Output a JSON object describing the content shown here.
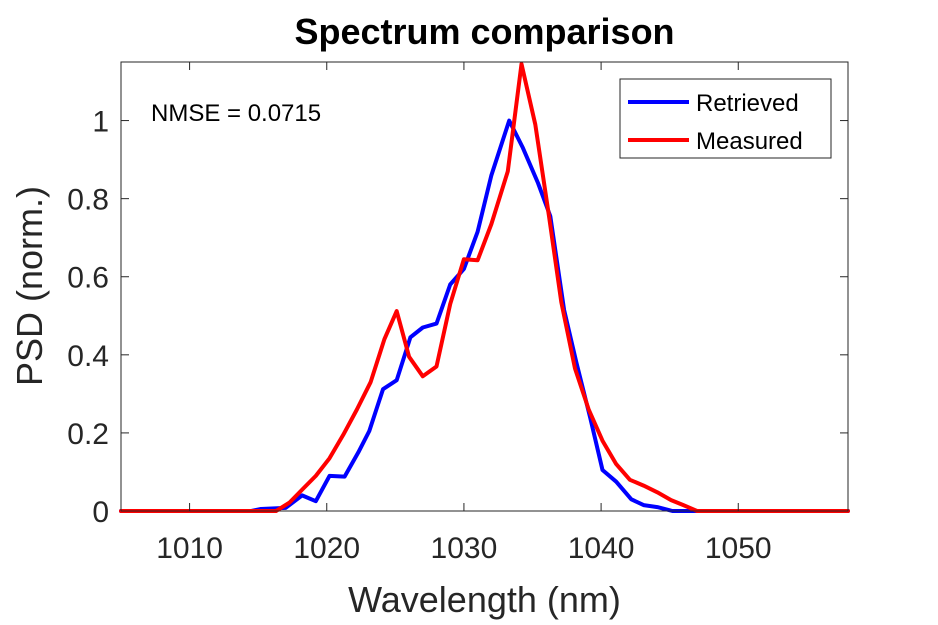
{
  "chart_data": {
    "type": "line",
    "title": "Spectrum comparison",
    "xlabel": "Wavelength (nm)",
    "ylabel": "PSD (norm.)",
    "xlim": [
      1005,
      1058
    ],
    "ylim": [
      0,
      1.15
    ],
    "xticks": [
      1010,
      1020,
      1030,
      1040,
      1050
    ],
    "xtick_labels": [
      "1010",
      "1020",
      "1030",
      "1040",
      "1050"
    ],
    "yticks": [
      0,
      0.2,
      0.4,
      0.6,
      0.8,
      1
    ],
    "ytick_labels": [
      "0",
      "0.2",
      "0.4",
      "0.6",
      "0.8",
      "1"
    ],
    "grid": false,
    "legend_position": "top-right",
    "annotation": "NMSE = 0.0715",
    "series": [
      {
        "name": "Retrieved",
        "color": "#0000FF",
        "x": [
          1005,
          1014.5,
          1015.2,
          1017,
          1018.2,
          1019.2,
          1020.2,
          1021.3,
          1022.3,
          1023.1,
          1024.1,
          1025.1,
          1026.1,
          1027,
          1028,
          1029,
          1030,
          1031,
          1032,
          1033.3,
          1034.3,
          1035.4,
          1036.3,
          1037.3,
          1038.2,
          1039.2,
          1040.1,
          1041.1,
          1042.2,
          1043.1,
          1044.1,
          1045.2,
          1045.8,
          1058
        ],
        "y": [
          0,
          0,
          0.005,
          0.008,
          0.04,
          0.025,
          0.09,
          0.088,
          0.15,
          0.205,
          0.312,
          0.335,
          0.445,
          0.47,
          0.48,
          0.58,
          0.62,
          0.715,
          0.86,
          1.0,
          0.93,
          0.84,
          0.755,
          0.515,
          0.38,
          0.24,
          0.105,
          0.075,
          0.03,
          0.015,
          0.01,
          0.0,
          0.0,
          0
        ]
      },
      {
        "name": "Measured",
        "color": "#FF0000",
        "x": [
          1005,
          1016.3,
          1017.3,
          1018.3,
          1019.2,
          1020.2,
          1021.2,
          1022.2,
          1023.2,
          1024.2,
          1025.1,
          1026,
          1027,
          1028,
          1029,
          1030,
          1031,
          1032,
          1033.2,
          1034.2,
          1035.2,
          1036.2,
          1037.1,
          1038.1,
          1039.1,
          1040.1,
          1041.1,
          1042.1,
          1043.1,
          1044.1,
          1045.1,
          1046,
          1047,
          1058
        ],
        "y": [
          0,
          0,
          0.022,
          0.058,
          0.09,
          0.135,
          0.195,
          0.26,
          0.33,
          0.44,
          0.512,
          0.395,
          0.345,
          0.37,
          0.53,
          0.645,
          0.642,
          0.735,
          0.87,
          1.145,
          0.99,
          0.755,
          0.535,
          0.365,
          0.26,
          0.18,
          0.12,
          0.08,
          0.065,
          0.048,
          0.028,
          0.015,
          0.0,
          0
        ]
      }
    ]
  }
}
